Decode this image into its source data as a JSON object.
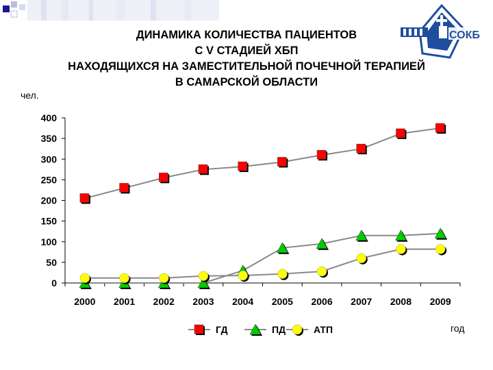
{
  "slide": {
    "title_lines": [
      "ДИНАМИКА КОЛИЧЕСТВА ПАЦИЕНТОВ",
      "С V СТАДИЕЙ ХБП",
      "НАХОДЯЩИХСЯ НА  ЗАМЕСТИТЕЛЬНОЙ ПОЧЕЧНОЙ ТЕРАПИЕЙ",
      "В САМАРСКОЙ ОБЛАСТИ"
    ],
    "logo_text": "СОКБ"
  },
  "chart_data": {
    "type": "line",
    "ylabel": "чел.",
    "xlabel": "год",
    "categories": [
      "2000",
      "2001",
      "2002",
      "2003",
      "2004",
      "2005",
      "2006",
      "2007",
      "2008",
      "2009"
    ],
    "ylim": [
      0,
      400
    ],
    "yticks": [
      0,
      50,
      100,
      150,
      200,
      250,
      300,
      350,
      400
    ],
    "grid": false,
    "legend_position": "bottom",
    "series": [
      {
        "name": "ГД",
        "marker": "square",
        "color": "#ff0000",
        "values": [
          205,
          230,
          255,
          275,
          282,
          293,
          310,
          325,
          362,
          375
        ]
      },
      {
        "name": "ПД",
        "marker": "triangle",
        "color": "#00cc00",
        "values": [
          0,
          0,
          0,
          0,
          30,
          85,
          95,
          115,
          115,
          120
        ]
      },
      {
        "name": "АТП",
        "marker": "circle",
        "color": "#ffff00",
        "values": [
          12,
          12,
          12,
          17,
          18,
          22,
          28,
          60,
          82,
          82
        ]
      }
    ]
  }
}
